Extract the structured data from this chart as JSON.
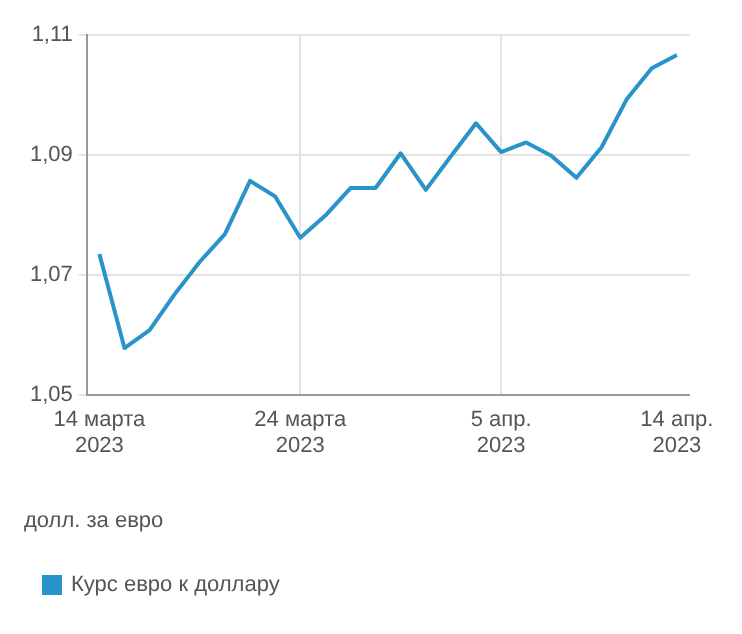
{
  "chart_data": {
    "type": "line",
    "categories": [
      "14 марта 2023",
      null,
      null,
      null,
      null,
      null,
      null,
      null,
      "24 марта 2023",
      null,
      null,
      null,
      null,
      null,
      null,
      null,
      "5 апр. 2023",
      null,
      null,
      null,
      null,
      null,
      null,
      "14 апр. 2023"
    ],
    "series": [
      {
        "name": "Курс евро к доллару",
        "color": "#2a93c9",
        "values": [
          1.0735,
          1.0578,
          1.0608,
          1.0668,
          1.0722,
          1.0768,
          1.0857,
          1.0831,
          1.0762,
          1.0799,
          1.0845,
          1.0845,
          1.0903,
          1.0842,
          1.0898,
          1.0953,
          1.0905,
          1.0921,
          1.0899,
          1.0862,
          1.0913,
          1.0993,
          1.1045,
          1.1067
        ]
      }
    ],
    "ylim": [
      1.05,
      1.11
    ],
    "yticks": [
      {
        "value": 1.05,
        "label": "1,05"
      },
      {
        "value": 1.07,
        "label": "1,07"
      },
      {
        "value": 1.09,
        "label": "1,09"
      },
      {
        "value": 1.11,
        "label": "1,11"
      }
    ],
    "annotations": [
      "долл. за евро"
    ],
    "grid": true,
    "legend": "bottom left",
    "marker": "none",
    "line_style": "solid"
  }
}
